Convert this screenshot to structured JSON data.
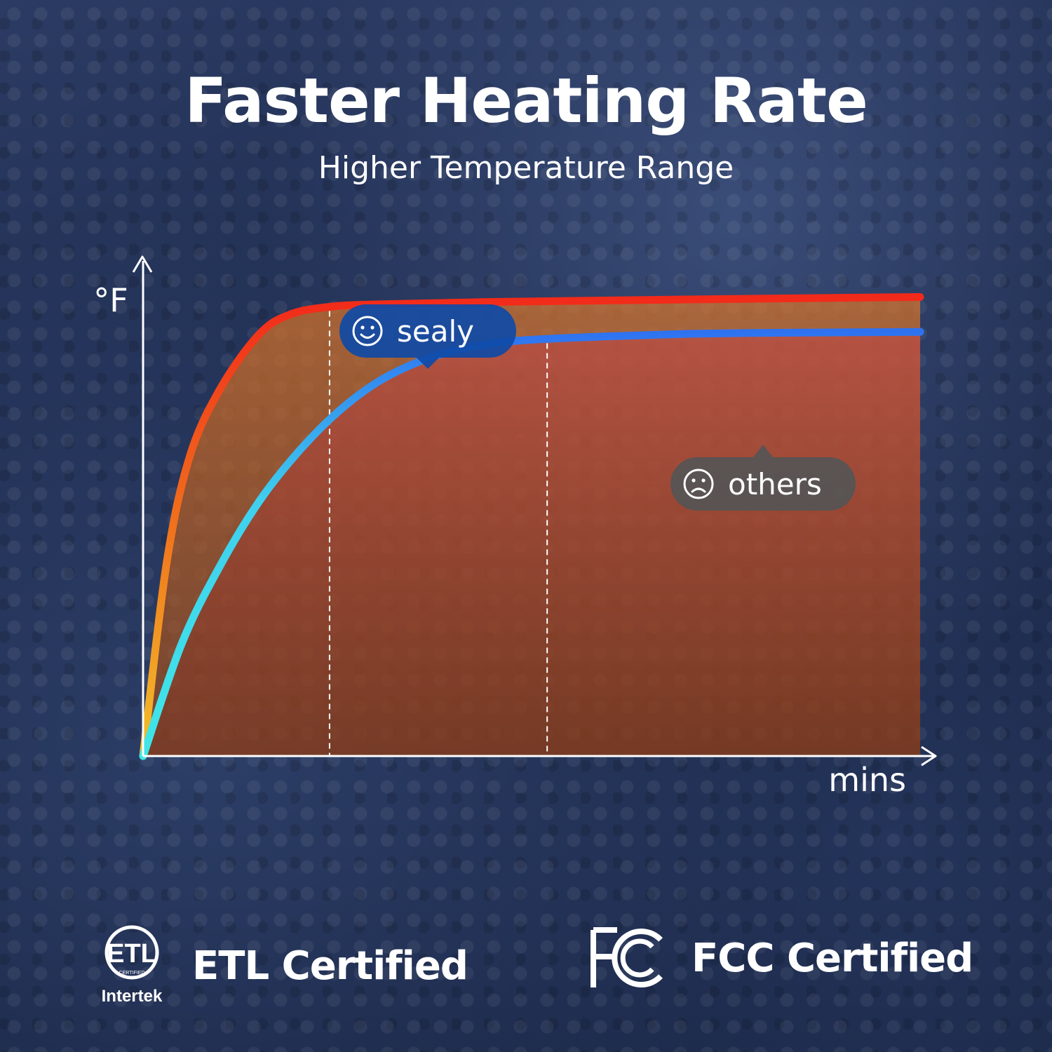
{
  "header": {
    "title": "Faster Heating Rate",
    "subtitle": "Higher Temperature Range"
  },
  "chart_data": {
    "type": "line",
    "xlabel": "mins",
    "ylabel": "°F",
    "xlim": [
      0,
      100
    ],
    "ylim": [
      0,
      100
    ],
    "grid": false,
    "series": [
      {
        "name": "sealy",
        "color": "#f22a1a",
        "x": [
          0,
          3,
          6,
          10,
          15,
          19,
          24,
          30,
          45,
          70,
          100
        ],
        "y": [
          0,
          39,
          61,
          75,
          86,
          90,
          91.5,
          92,
          92.5,
          93,
          93.5
        ]
      },
      {
        "name": "others",
        "color": "#2f86f0",
        "x": [
          0,
          5,
          10,
          15,
          20,
          25,
          30,
          35,
          40,
          45,
          50,
          60,
          70,
          80,
          90,
          100
        ],
        "y": [
          0,
          23,
          39,
          52,
          62,
          70,
          76,
          80,
          82.6,
          84,
          84.8,
          85.5,
          86,
          86.2,
          86.3,
          86.4
        ]
      }
    ],
    "markers": [
      {
        "series": "sealy",
        "x": 24
      },
      {
        "series": "others",
        "x": 52
      }
    ],
    "callouts": [
      {
        "series": "sealy",
        "icon": "smile-face-icon",
        "label": "sealy",
        "color": "#0f4aa6"
      },
      {
        "series": "others",
        "icon": "frown-face-icon",
        "label": "others",
        "color": "#555555"
      }
    ]
  },
  "certifications": [
    {
      "label": "ETL Certified",
      "logo_text": "ETL",
      "logo_sub": "Intertek",
      "logo_mark": "CERTIFIED",
      "icon": "etl-logo-icon"
    },
    {
      "label": "FCC Certified",
      "logo_text": "FC",
      "icon": "fcc-logo-icon"
    }
  ]
}
